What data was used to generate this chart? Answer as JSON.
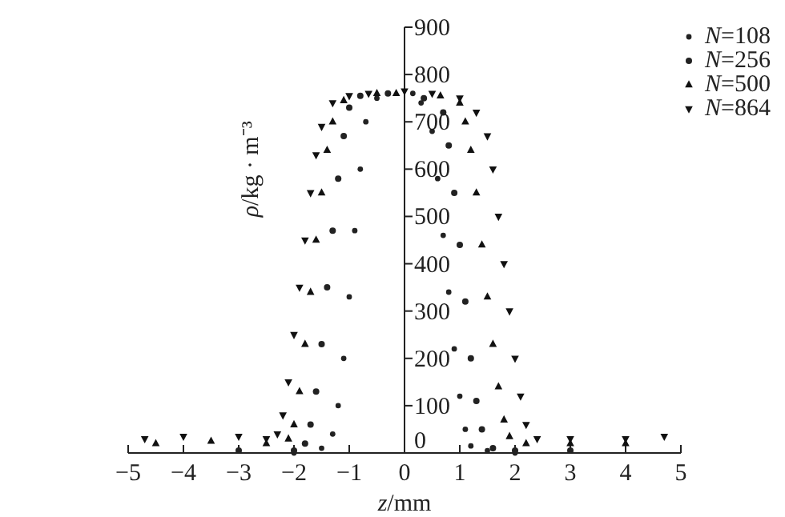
{
  "chart_data": {
    "type": "scatter",
    "xlabel": "z/mm",
    "ylabel": "ρ/kg · m⁻³",
    "xlim": [
      -5,
      5
    ],
    "ylim": [
      0,
      900
    ],
    "xticks": [
      -5,
      -4,
      -3,
      -2,
      -1,
      0,
      1,
      2,
      3,
      4,
      5
    ],
    "yticks": [
      0,
      100,
      200,
      300,
      400,
      500,
      600,
      700,
      800,
      900
    ],
    "grid": false,
    "legend": "top right",
    "series": [
      {
        "name": "N=108",
        "color": "#222222",
        "marker": "circle",
        "x": [
          -2,
          -1.5,
          -1.3,
          -1.2,
          -1.1,
          -1.0,
          -0.9,
          -0.8,
          -0.7,
          -0.5,
          0.15,
          0.3,
          0.5,
          0.6,
          0.7,
          0.8,
          0.9,
          1.0,
          1.1,
          1.2,
          1.5,
          2
        ],
        "values": [
          0,
          10,
          40,
          100,
          200,
          330,
          470,
          600,
          700,
          750,
          760,
          740,
          680,
          580,
          460,
          340,
          220,
          120,
          50,
          15,
          5,
          0
        ]
      },
      {
        "name": "N=256",
        "color": "#222222",
        "marker": "circle",
        "x": [
          -3,
          -2,
          -1.8,
          -1.7,
          -1.6,
          -1.5,
          -1.4,
          -1.3,
          -1.2,
          -1.1,
          -1.0,
          -0.8,
          -0.3,
          0.35,
          0.7,
          0.8,
          0.9,
          1.0,
          1.1,
          1.2,
          1.3,
          1.4,
          1.6,
          2,
          3
        ],
        "values": [
          5,
          5,
          20,
          60,
          130,
          230,
          350,
          470,
          580,
          670,
          730,
          755,
          760,
          750,
          720,
          650,
          550,
          440,
          320,
          200,
          110,
          50,
          10,
          5,
          5
        ]
      },
      {
        "name": "N=500",
        "color": "#111111",
        "marker": "triangle",
        "x": [
          -4.5,
          -3.5,
          -2.5,
          -2.1,
          -2.0,
          -1.9,
          -1.8,
          -1.7,
          -1.6,
          -1.5,
          -1.4,
          -1.3,
          -1.1,
          -0.5,
          -0.15,
          0.65,
          1.0,
          1.1,
          1.2,
          1.3,
          1.4,
          1.5,
          1.6,
          1.7,
          1.8,
          1.9,
          2.2,
          3,
          4
        ],
        "values": [
          20,
          25,
          20,
          30,
          60,
          130,
          230,
          340,
          450,
          550,
          640,
          700,
          745,
          760,
          760,
          755,
          740,
          700,
          640,
          550,
          440,
          330,
          230,
          140,
          70,
          35,
          20,
          20,
          20
        ]
      },
      {
        "name": "N=864",
        "color": "#111111",
        "marker": "triangle-down",
        "x": [
          -4.7,
          -4,
          -3,
          -2.5,
          -2.3,
          -2.2,
          -2.1,
          -2.0,
          -1.9,
          -1.8,
          -1.7,
          -1.6,
          -1.5,
          -1.3,
          -1.0,
          -0.65,
          0,
          0.5,
          1.0,
          1.3,
          1.5,
          1.6,
          1.7,
          1.8,
          1.9,
          2.0,
          2.1,
          2.2,
          2.4,
          3,
          4,
          4.7
        ],
        "values": [
          30,
          35,
          35,
          30,
          40,
          80,
          150,
          250,
          350,
          450,
          550,
          630,
          690,
          740,
          755,
          760,
          765,
          760,
          750,
          720,
          670,
          600,
          500,
          400,
          300,
          200,
          120,
          60,
          30,
          30,
          30,
          35
        ]
      }
    ]
  }
}
